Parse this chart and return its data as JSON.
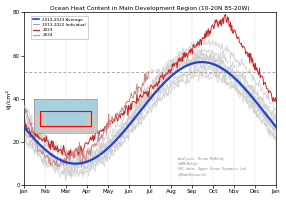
{
  "title": "Ocean Heat Content in Main Development Region (10-20N 85-20W)",
  "ylabel": "kJ/cm²",
  "ylim": [
    0,
    80
  ],
  "yticks": [
    0,
    20,
    40,
    60,
    80
  ],
  "months": [
    "Jan",
    "Feb",
    "Mar",
    "Apr",
    "May",
    "Jun",
    "Jul",
    "Aug",
    "Sep",
    "Oct",
    "Nov",
    "Dec",
    "Jan"
  ],
  "avg_color": "#2244cc",
  "indiv_color": "#cccccc",
  "year2023_color": "#cc2222",
  "year2024_color": "#cc8888",
  "dashed_line_y": 52.5,
  "annotation_text": "Analysis: Brian McNoldy\n(@BMcNoldy)\nOHC data: Upper Ocean Dynamics Lab\n(@RomsResearch)",
  "legend_labels": [
    "2013-2023 Average",
    "2013-2022 Individual",
    "2023",
    "2024"
  ],
  "title_fontsize": 4.2,
  "tick_fontsize": 4.0,
  "ylabel_fontsize": 4.5,
  "legend_fontsize": 3.0,
  "annotation_fontsize": 2.3
}
